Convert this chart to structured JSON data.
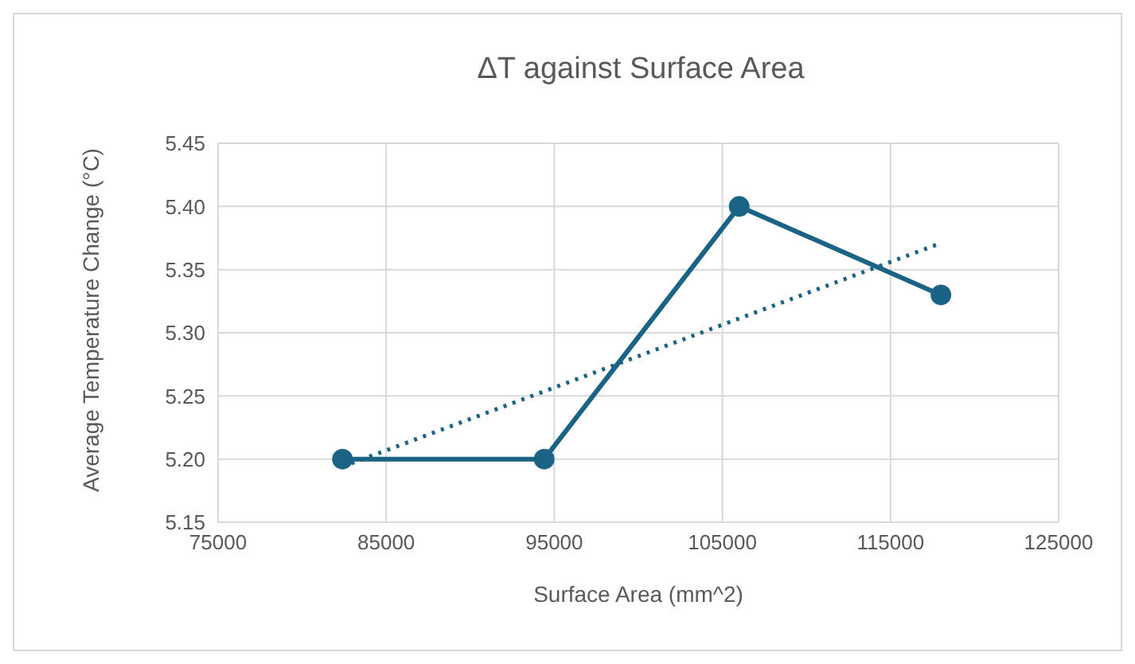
{
  "chart_data": {
    "type": "line",
    "title": "ΔT against Surface Area",
    "xlabel": "Surface Area (mm^2)",
    "ylabel": "Average Temperature Change (°C)",
    "xlim": [
      75000,
      125000
    ],
    "xticks": [
      75000,
      85000,
      95000,
      105000,
      115000,
      125000
    ],
    "ylim": [
      5.15,
      5.45
    ],
    "yticks": [
      5.15,
      {
        "value": 5.2,
        "label": "5.20"
      },
      5.25,
      {
        "value": 5.3,
        "label": "5.30"
      },
      5.35,
      {
        "value": 5.4,
        "label": "5.40"
      },
      5.45
    ],
    "grid": true,
    "legend": false,
    "series": [
      {
        "color": "#1b6385",
        "x": [
          82400,
          94400,
          106000,
          118000
        ],
        "values": [
          5.2,
          5.2,
          5.4,
          5.33
        ],
        "marker": "circle",
        "line_style": "solid"
      },
      {
        "color": "#1b6385",
        "x": [
          82400,
          118000
        ],
        "values": [
          5.194,
          5.371
        ],
        "marker": "none",
        "line_style": "dotted"
      }
    ]
  }
}
